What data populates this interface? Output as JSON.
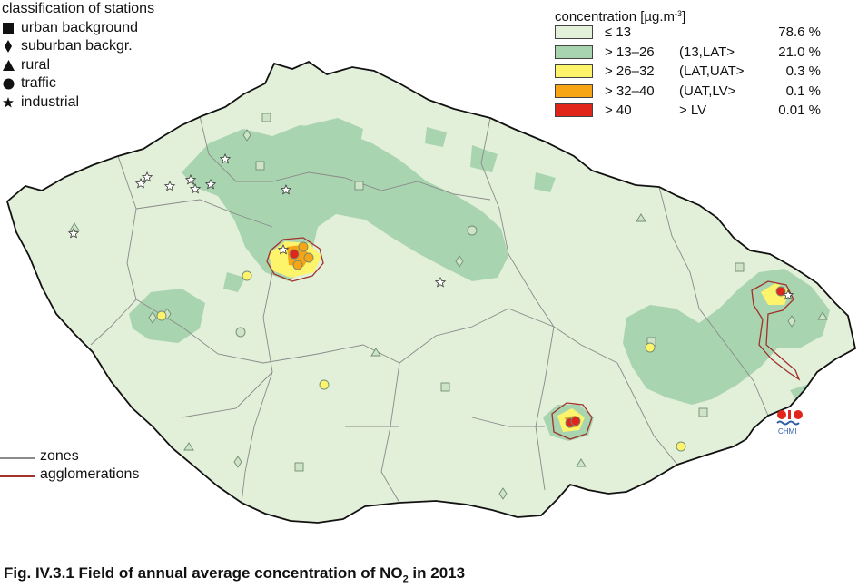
{
  "stations_legend": {
    "title": "classification of stations",
    "items": [
      {
        "symbol": "square",
        "label": "urban background"
      },
      {
        "symbol": "diamond",
        "label": "suburban backgr."
      },
      {
        "symbol": "triangle",
        "label": "rural"
      },
      {
        "symbol": "circle",
        "label": "traffic"
      },
      {
        "symbol": "star",
        "label": "industrial"
      }
    ]
  },
  "concentration_legend": {
    "title": "concentration [µg.m",
    "title_sup": "-3",
    "title_end": "]",
    "classes": [
      {
        "label": "≤ 13",
        "range": "",
        "percent": "78.6 %",
        "color": "#e2efd9"
      },
      {
        "label": "> 13–26",
        "range": "(13,LAT>",
        "percent": "21.0 %",
        "color": "#a9d4b0"
      },
      {
        "label": "> 26–32",
        "range": "(LAT,UAT>",
        "percent": "0.3 %",
        "color": "#fef46c"
      },
      {
        "label": "> 32–40",
        "range": "(UAT,LV>",
        "percent": "0.1 %",
        "color": "#f7a514"
      },
      {
        "label": "> 40",
        "range": "> LV",
        "percent": "0.01 %",
        "color": "#e1251b"
      }
    ]
  },
  "lines_legend": {
    "items": [
      {
        "label": "zones",
        "color": "#8a8a8a"
      },
      {
        "label": "agglomerations",
        "color": "#a0322a"
      }
    ]
  },
  "logo": {
    "text": "CHMI"
  },
  "caption": {
    "prefix": "Fig. IV.3.1  Field of annual average concentration of NO",
    "sub": "2",
    "suffix": " in 2013"
  }
}
